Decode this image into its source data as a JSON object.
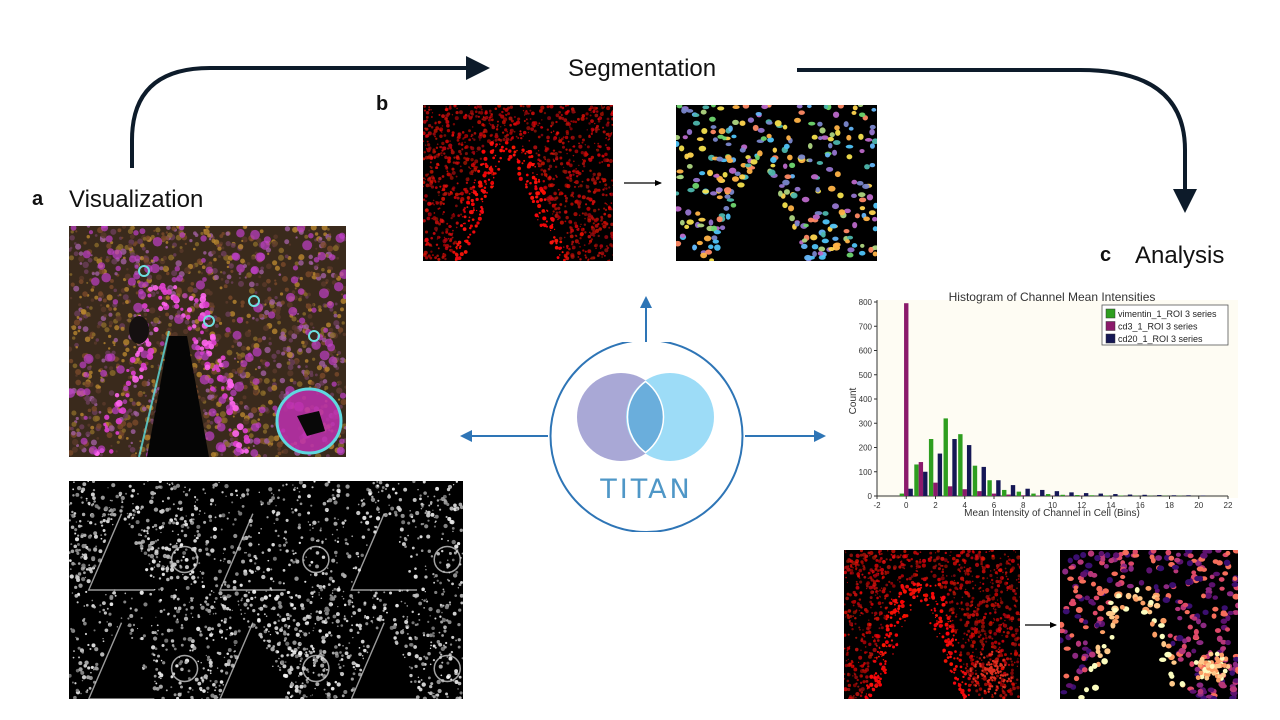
{
  "labels": {
    "segmentation": "Segmentation",
    "visualization": "Visualization",
    "analysis": "Analysis",
    "panel_a": "a",
    "panel_b": "b",
    "panel_c": "c",
    "logo_text": "TITAN"
  },
  "images": {
    "composite": "multiplex-composite-image",
    "channel_grid": "grayscale-channel-grid",
    "seg_input": "red-nuclei-image",
    "seg_output": "segmented-cells-image",
    "analysis_input": "red-intensity-image",
    "analysis_output": "inferno-colored-cells-image"
  },
  "colors": {
    "arrow_dark": "#0d1b2a",
    "arrow_blue": "#2e75b6",
    "logo_circle_left": "#a9a8d6",
    "logo_circle_right": "#9ddcf7",
    "logo_overlap": "#6aaedc",
    "logo_text": "#4f97c7",
    "series_vimentin": "#2e9e1f",
    "series_cd3": "#8b1a6b",
    "series_cd20": "#151755"
  },
  "chart_data": {
    "type": "bar",
    "title": "Histogram of Channel Mean Intensities",
    "xlabel": "Mean Intensity of Channel in Cell (Bins)",
    "ylabel": "Count",
    "xlim": [
      -2,
      22
    ],
    "ylim": [
      0,
      800
    ],
    "xticks": [
      -2,
      0,
      2,
      4,
      6,
      8,
      10,
      12,
      14,
      16,
      18,
      20,
      22
    ],
    "yticks": [
      0,
      100,
      200,
      300,
      400,
      500,
      600,
      700,
      800
    ],
    "grid": false,
    "legend_position": "top-right",
    "x": [
      0,
      1,
      2,
      3,
      4,
      5,
      6,
      7,
      8,
      9,
      10,
      11,
      12,
      13,
      14,
      15,
      16,
      17,
      18,
      19,
      20
    ],
    "series": [
      {
        "name": "vimentin_1_ROI 3 series",
        "color": "#2e9e1f",
        "values": [
          10,
          130,
          235,
          320,
          255,
          125,
          65,
          25,
          18,
          10,
          8,
          5,
          4,
          3,
          2,
          2,
          1,
          1,
          1,
          1,
          0
        ]
      },
      {
        "name": "cd3_1_ROI 3 series",
        "color": "#8b1a6b",
        "values": [
          795,
          140,
          55,
          40,
          28,
          20,
          10,
          6,
          3,
          2,
          1,
          1,
          1,
          0,
          0,
          0,
          0,
          0,
          0,
          0,
          0
        ]
      },
      {
        "name": "cd20_1_ROI 3 series",
        "color": "#151755",
        "values": [
          30,
          100,
          175,
          235,
          210,
          120,
          65,
          45,
          30,
          25,
          20,
          15,
          12,
          10,
          8,
          6,
          5,
          4,
          3,
          3,
          2
        ]
      }
    ]
  }
}
